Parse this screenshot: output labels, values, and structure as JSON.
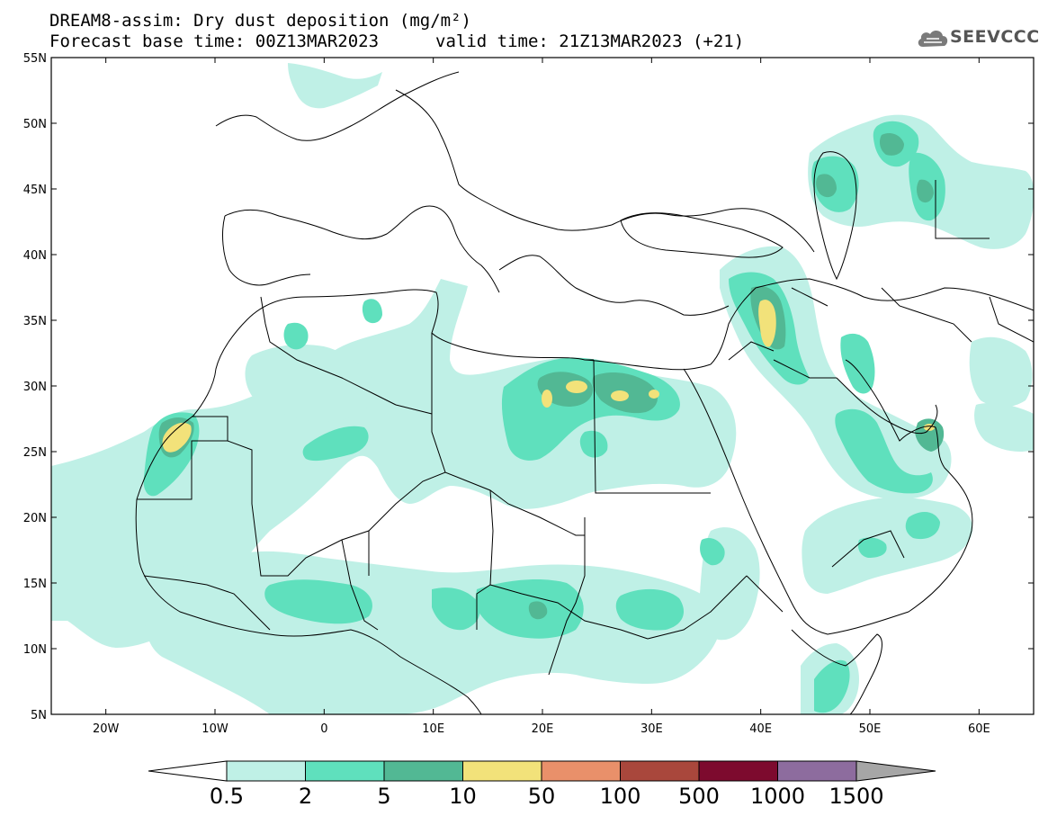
{
  "header": {
    "title": "DREAM8-assim: Dry dust deposition (mg/m²)",
    "base_time": "Forecast base time: 00Z13MAR2023",
    "valid_time": "valid time: 21Z13MAR2023 (+21)",
    "logo_text": "SEEVCCC"
  },
  "axes": {
    "lat_labels": [
      "55N",
      "50N",
      "45N",
      "40N",
      "35N",
      "30N",
      "25N",
      "20N",
      "15N",
      "10N",
      "5N"
    ],
    "lon_labels": [
      "20W",
      "10W",
      "0",
      "10E",
      "20E",
      "30E",
      "40E",
      "50E",
      "60E"
    ]
  },
  "colorbar": {
    "labels": [
      "0.5",
      "2",
      "5",
      "10",
      "50",
      "100",
      "500",
      "1000",
      "1500"
    ],
    "colors": [
      "#bff0e6",
      "#5fe0bd",
      "#52b894",
      "#f2e27a",
      "#e9906a",
      "#a9473c",
      "#7d0a2e",
      "#8d6c9e"
    ],
    "under_color": "#ffffff",
    "over_color": "#a6a6a6"
  },
  "map": {
    "region": "North Africa, Middle East and Europe",
    "lon_range": [
      -25,
      65
    ],
    "lat_range": [
      5,
      55
    ],
    "plume_regions": [
      "Western Sahara / Morocco coast",
      "Libya / Egypt coast",
      "Syria / Iraq",
      "Persian Gulf / UAE",
      "Caspian region",
      "Sahel belt",
      "Horn of Africa"
    ]
  },
  "colors": {
    "border": "#000000",
    "background": "#ffffff"
  }
}
